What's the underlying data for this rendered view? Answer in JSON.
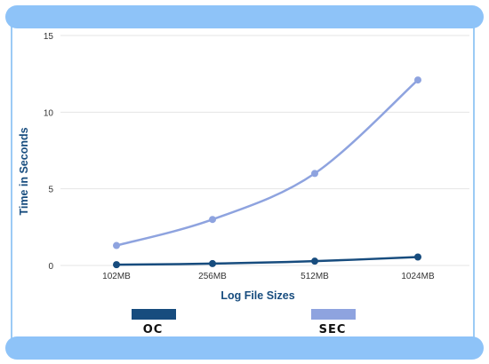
{
  "chart_data": {
    "type": "line",
    "categories": [
      "102MB",
      "256MB",
      "512MB",
      "1024MB"
    ],
    "xlabel": "Log File Sizes",
    "ylabel": "Time in Seconds",
    "ylim": [
      0,
      15
    ],
    "yticks": [
      "0",
      "5",
      "10",
      "15"
    ],
    "grid": true,
    "legend_position": "bottom",
    "series": [
      {
        "name": "OC",
        "color": "#174c7e",
        "values": [
          0.05,
          0.12,
          0.28,
          0.55
        ]
      },
      {
        "name": "SEC",
        "color": "#8ea3df",
        "values": [
          1.3,
          3.0,
          6.0,
          12.1
        ]
      }
    ]
  }
}
